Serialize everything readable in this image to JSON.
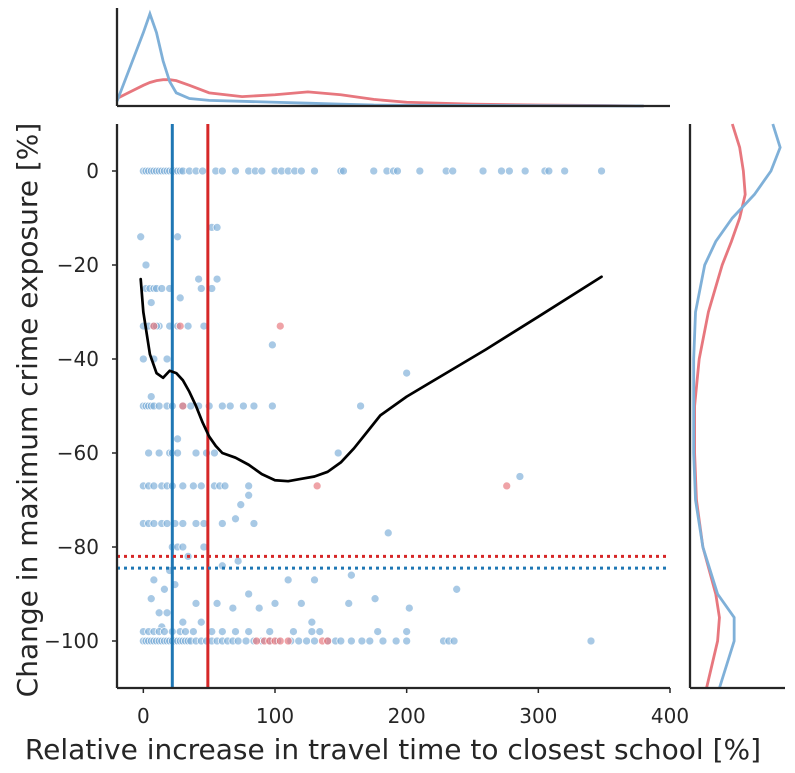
{
  "chart_data": {
    "type": "scatter",
    "title": "",
    "xlabel": "Relative increase in travel time to closest school [%]",
    "ylabel": "Change in maximum crime exposure [%]",
    "xlim": [
      -20,
      400
    ],
    "ylim": [
      -110,
      10
    ],
    "x_ticks": [
      0,
      100,
      200,
      300,
      400
    ],
    "y_ticks": [
      0,
      -20,
      -40,
      -60,
      -80,
      -100
    ],
    "x_tick_labels": [
      "0",
      "100",
      "200",
      "300",
      "400"
    ],
    "y_tick_labels": [
      "0",
      "−20",
      "−40",
      "−60",
      "−80",
      "−100"
    ],
    "grid": false,
    "legend": "none",
    "colors": {
      "blue_points": "#7FB0D8",
      "blue_lines": "#1F77B4",
      "red_points": "#E7777E",
      "red_lines": "#D62728",
      "trend": "#000000",
      "axes": "#262626"
    },
    "series": [
      {
        "color": "blue",
        "points": [
          [
            0,
            0
          ],
          [
            2,
            0
          ],
          [
            4,
            0
          ],
          [
            6,
            0
          ],
          [
            8,
            0
          ],
          [
            10,
            0
          ],
          [
            12,
            0
          ],
          [
            14,
            0
          ],
          [
            16,
            0
          ],
          [
            18,
            0
          ],
          [
            20,
            0
          ],
          [
            22,
            0
          ],
          [
            24,
            0
          ],
          [
            26,
            0
          ],
          [
            28,
            0
          ],
          [
            30,
            0
          ],
          [
            35,
            0
          ],
          [
            40,
            0
          ],
          [
            45,
            0
          ],
          [
            55,
            0
          ],
          [
            60,
            0
          ],
          [
            70,
            0
          ],
          [
            80,
            0
          ],
          [
            85,
            0
          ],
          [
            90,
            0
          ],
          [
            100,
            0
          ],
          [
            105,
            0
          ],
          [
            110,
            0
          ],
          [
            115,
            0
          ],
          [
            120,
            0
          ],
          [
            130,
            0
          ],
          [
            150,
            0
          ],
          [
            152,
            0
          ],
          [
            175,
            0
          ],
          [
            185,
            0
          ],
          [
            190,
            0
          ],
          [
            193,
            0
          ],
          [
            210,
            0
          ],
          [
            230,
            0
          ],
          [
            235,
            0
          ],
          [
            258,
            0
          ],
          [
            272,
            0
          ],
          [
            278,
            0
          ],
          [
            290,
            0
          ],
          [
            305,
            0
          ],
          [
            308,
            0
          ],
          [
            320,
            0
          ],
          [
            348,
            0
          ],
          [
            -2,
            -14
          ],
          [
            26,
            -14
          ],
          [
            52,
            -12
          ],
          [
            56,
            -12
          ],
          [
            2,
            -20
          ],
          [
            2,
            -25
          ],
          [
            5,
            -25
          ],
          [
            8,
            -25
          ],
          [
            10,
            -25
          ],
          [
            14,
            -25
          ],
          [
            20,
            -25
          ],
          [
            28,
            -27
          ],
          [
            44,
            -25
          ],
          [
            52,
            -25
          ],
          [
            56,
            -23
          ],
          [
            42,
            -23
          ],
          [
            0,
            -33
          ],
          [
            4,
            -33
          ],
          [
            8,
            -33
          ],
          [
            12,
            -33
          ],
          [
            20,
            -33
          ],
          [
            26,
            -33
          ],
          [
            34,
            -33
          ],
          [
            46,
            -33
          ],
          [
            6,
            -28
          ],
          [
            10,
            -33
          ],
          [
            0,
            -40
          ],
          [
            8,
            -40
          ],
          [
            18,
            -40
          ],
          [
            98,
            -37
          ],
          [
            0,
            -50
          ],
          [
            2,
            -50
          ],
          [
            4,
            -50
          ],
          [
            6,
            -50
          ],
          [
            8,
            -50
          ],
          [
            12,
            -50
          ],
          [
            18,
            -50
          ],
          [
            22,
            -50
          ],
          [
            30,
            -50
          ],
          [
            36,
            -50
          ],
          [
            42,
            -50
          ],
          [
            50,
            -50
          ],
          [
            60,
            -50
          ],
          [
            66,
            -50
          ],
          [
            76,
            -50
          ],
          [
            84,
            -50
          ],
          [
            98,
            -50
          ],
          [
            165,
            -50
          ],
          [
            200,
            -43
          ],
          [
            6,
            -48
          ],
          [
            26,
            -57
          ],
          [
            4,
            -60
          ],
          [
            12,
            -60
          ],
          [
            20,
            -60
          ],
          [
            22,
            -60
          ],
          [
            26,
            -60
          ],
          [
            40,
            -60
          ],
          [
            48,
            -60
          ],
          [
            54,
            -60
          ],
          [
            148,
            -60
          ],
          [
            0,
            -67
          ],
          [
            4,
            -67
          ],
          [
            8,
            -67
          ],
          [
            14,
            -67
          ],
          [
            18,
            -67
          ],
          [
            22,
            -67
          ],
          [
            30,
            -67
          ],
          [
            38,
            -67
          ],
          [
            44,
            -67
          ],
          [
            54,
            -67
          ],
          [
            58,
            -67
          ],
          [
            62,
            -67
          ],
          [
            80,
            -67
          ],
          [
            286,
            -65
          ],
          [
            74,
            -71
          ],
          [
            80,
            -69
          ],
          [
            84,
            -75
          ],
          [
            0,
            -75
          ],
          [
            4,
            -75
          ],
          [
            8,
            -75
          ],
          [
            14,
            -75
          ],
          [
            18,
            -75
          ],
          [
            24,
            -75
          ],
          [
            30,
            -75
          ],
          [
            40,
            -75
          ],
          [
            46,
            -75
          ],
          [
            60,
            -75
          ],
          [
            70,
            -74
          ],
          [
            186,
            -77
          ],
          [
            22,
            -80
          ],
          [
            26,
            -80
          ],
          [
            30,
            -80
          ],
          [
            34,
            -82
          ],
          [
            46,
            -80
          ],
          [
            60,
            -84
          ],
          [
            72,
            -83
          ],
          [
            20,
            -85
          ],
          [
            110,
            -87
          ],
          [
            130,
            -87
          ],
          [
            158,
            -86
          ],
          [
            238,
            -89
          ],
          [
            8,
            -87
          ],
          [
            16,
            -89
          ],
          [
            24,
            -88
          ],
          [
            40,
            -92
          ],
          [
            56,
            -92
          ],
          [
            68,
            -93
          ],
          [
            80,
            -90
          ],
          [
            88,
            -93
          ],
          [
            100,
            -92
          ],
          [
            120,
            -92
          ],
          [
            156,
            -92
          ],
          [
            176,
            -91
          ],
          [
            202,
            -93
          ],
          [
            6,
            -91
          ],
          [
            12,
            -94
          ],
          [
            18,
            -94
          ],
          [
            30,
            -96
          ],
          [
            44,
            -96
          ],
          [
            14,
            -97
          ],
          [
            0,
            -98
          ],
          [
            4,
            -98
          ],
          [
            8,
            -98
          ],
          [
            12,
            -98
          ],
          [
            16,
            -98
          ],
          [
            22,
            -98
          ],
          [
            28,
            -98
          ],
          [
            32,
            -98
          ],
          [
            38,
            -98
          ],
          [
            52,
            -98
          ],
          [
            60,
            -98
          ],
          [
            70,
            -98
          ],
          [
            80,
            -98
          ],
          [
            96,
            -98
          ],
          [
            114,
            -98
          ],
          [
            128,
            -98
          ],
          [
            178,
            -98
          ],
          [
            200,
            -98
          ],
          [
            0,
            -100
          ],
          [
            2,
            -100
          ],
          [
            4,
            -100
          ],
          [
            6,
            -100
          ],
          [
            8,
            -100
          ],
          [
            10,
            -100
          ],
          [
            12,
            -100
          ],
          [
            14,
            -100
          ],
          [
            16,
            -100
          ],
          [
            18,
            -100
          ],
          [
            20,
            -100
          ],
          [
            22,
            -100
          ],
          [
            24,
            -100
          ],
          [
            26,
            -100
          ],
          [
            28,
            -100
          ],
          [
            30,
            -100
          ],
          [
            32,
            -100
          ],
          [
            34,
            -100
          ],
          [
            36,
            -100
          ],
          [
            40,
            -100
          ],
          [
            44,
            -100
          ],
          [
            48,
            -100
          ],
          [
            52,
            -100
          ],
          [
            56,
            -100
          ],
          [
            60,
            -100
          ],
          [
            64,
            -100
          ],
          [
            68,
            -100
          ],
          [
            72,
            -100
          ],
          [
            78,
            -100
          ],
          [
            84,
            -100
          ],
          [
            90,
            -100
          ],
          [
            96,
            -100
          ],
          [
            102,
            -100
          ],
          [
            112,
            -100
          ],
          [
            118,
            -100
          ],
          [
            124,
            -100
          ],
          [
            130,
            -100
          ],
          [
            140,
            -100
          ],
          [
            146,
            -100
          ],
          [
            150,
            -100
          ],
          [
            158,
            -100
          ],
          [
            166,
            -100
          ],
          [
            172,
            -100
          ],
          [
            182,
            -100
          ],
          [
            192,
            -100
          ],
          [
            200,
            -100
          ],
          [
            228,
            -100
          ],
          [
            232,
            -100
          ],
          [
            236,
            -100
          ],
          [
            340,
            -100
          ],
          [
            128,
            -96
          ],
          [
            134,
            -98
          ]
        ]
      },
      {
        "color": "red",
        "points": [
          [
            104,
            -33
          ],
          [
            8,
            -33
          ],
          [
            30,
            -50
          ],
          [
            132,
            -67
          ],
          [
            276,
            -67
          ],
          [
            86,
            -100
          ],
          [
            92,
            -100
          ],
          [
            96,
            -100
          ],
          [
            100,
            -100
          ],
          [
            104,
            -100
          ],
          [
            110,
            -100
          ],
          [
            136,
            -100
          ],
          [
            140,
            -100
          ],
          [
            28,
            -33
          ]
        ]
      }
    ],
    "reference_lines": {
      "blue_vertical_x": 22,
      "red_vertical_x": 49,
      "blue_horizontal_y": -84.5,
      "red_horizontal_y": -82
    },
    "trend_line": {
      "x": [
        -2,
        0,
        5,
        10,
        15,
        20,
        25,
        30,
        35,
        40,
        45,
        50,
        55,
        60,
        70,
        80,
        90,
        100,
        110,
        120,
        130,
        140,
        150,
        160,
        170,
        180,
        200,
        230,
        260,
        300,
        348
      ],
      "y": [
        -23,
        -30,
        -39,
        -43,
        -44,
        -42.5,
        -43,
        -44.5,
        -47,
        -50,
        -53.5,
        -56.5,
        -58.5,
        -60,
        -61,
        -62.5,
        -64.5,
        -65.8,
        -66,
        -65.5,
        -65,
        -64,
        -62,
        -59,
        -55.5,
        -52,
        -48,
        -43,
        -38,
        -31,
        -22.5
      ]
    },
    "marginal_top": {
      "x": [
        -20,
        0,
        5,
        10,
        15,
        20,
        25,
        35,
        50,
        75,
        100,
        125,
        150,
        175,
        200,
        250,
        300,
        350,
        380
      ],
      "blue_density": [
        0.05,
        0.78,
        0.98,
        0.78,
        0.48,
        0.26,
        0.14,
        0.08,
        0.06,
        0.05,
        0.04,
        0.03,
        0.02,
        0.01,
        0.008,
        0.006,
        0.004,
        0.002,
        0
      ],
      "red_density": [
        0.08,
        0.22,
        0.25,
        0.27,
        0.28,
        0.28,
        0.27,
        0.22,
        0.14,
        0.1,
        0.12,
        0.15,
        0.12,
        0.07,
        0.04,
        0.02,
        0.01,
        0.005,
        0
      ]
    },
    "marginal_right": {
      "y": [
        10,
        5,
        0,
        -5,
        -10,
        -15,
        -20,
        -30,
        -40,
        -50,
        -60,
        -70,
        -80,
        -90,
        -95,
        -100,
        -105,
        -110
      ],
      "blue_density": [
        0.9,
        0.98,
        0.88,
        0.7,
        0.46,
        0.28,
        0.16,
        0.06,
        0.04,
        0.04,
        0.04,
        0.06,
        0.14,
        0.3,
        0.48,
        0.48,
        0.4,
        0.32
      ],
      "red_density": [
        0.46,
        0.54,
        0.58,
        0.6,
        0.54,
        0.45,
        0.35,
        0.2,
        0.1,
        0.05,
        0.05,
        0.07,
        0.14,
        0.28,
        0.32,
        0.3,
        0.24,
        0.18
      ]
    }
  }
}
